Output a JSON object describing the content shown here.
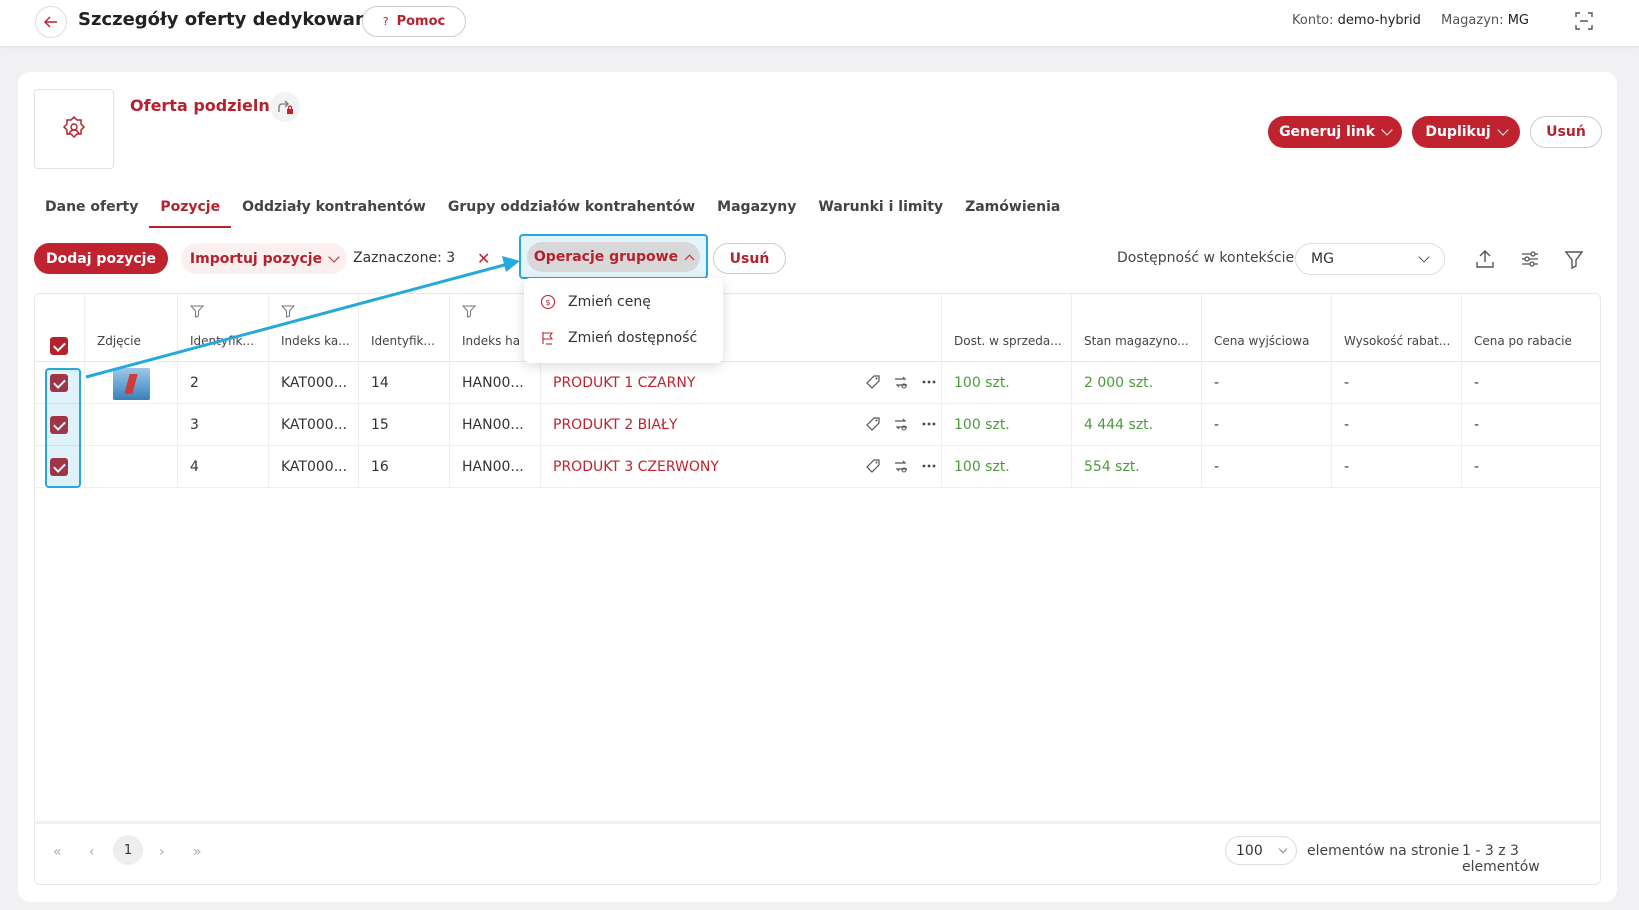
{
  "header": {
    "title": "Szczegóły oferty dedykowanej",
    "help_label": "Pomoc",
    "help_icon": "?",
    "account_label": "Konto:",
    "account_value": "demo-hybrid",
    "warehouse_label": "Magazyn:",
    "warehouse_value": "MG"
  },
  "offer": {
    "name": "Oferta podzielna",
    "actions": {
      "generate_link": "Generuj link",
      "duplicate": "Duplikuj",
      "delete": "Usuń"
    }
  },
  "tabs": [
    {
      "label": "Dane oferty",
      "active": false
    },
    {
      "label": "Pozycje",
      "active": true
    },
    {
      "label": "Oddziały kontrahentów",
      "active": false
    },
    {
      "label": "Grupy oddziałów kontrahentów",
      "active": false
    },
    {
      "label": "Magazyny",
      "active": false
    },
    {
      "label": "Warunki i limity",
      "active": false
    },
    {
      "label": "Zamówienia",
      "active": false
    }
  ],
  "toolbar": {
    "add_positions": "Dodaj pozycje",
    "import_positions": "Importuj pozycje",
    "selected_label": "Zaznaczone: 3",
    "clear_icon": "✕",
    "group_operations": "Operacje grupowe",
    "delete": "Usuń",
    "availability_label": "Dostępność w kontekście",
    "availability_value": "MG"
  },
  "group_menu": {
    "items": [
      {
        "label": "Zmień cenę",
        "icon": "dollar-circle-icon"
      },
      {
        "label": "Zmień dostępność",
        "icon": "availability-icon"
      }
    ]
  },
  "table": {
    "columns": [
      "Zdjęcie",
      "Identyfik...",
      "Indeks ka...",
      "Identyfik...",
      "Indeks ha",
      "",
      "Dost. w sprzeda...",
      "Stan magazyno...",
      "Cena wyjściowa",
      "Wysokość rabat...",
      "Cena po rabacie"
    ],
    "rows": [
      {
        "id": "2",
        "catalog_index": "KAT000...",
        "identifier": "14",
        "trade_index": "HAN00...",
        "name": "PRODUKT 1 CZARNY",
        "available": "100 szt.",
        "stock": "2 000 szt.",
        "base_price": "-",
        "discount": "-",
        "final_price": "-",
        "has_photo": true
      },
      {
        "id": "3",
        "catalog_index": "KAT000...",
        "identifier": "15",
        "trade_index": "HAN00...",
        "name": "PRODUKT 2 BIAŁY",
        "available": "100 szt.",
        "stock": "4 444 szt.",
        "base_price": "-",
        "discount": "-",
        "final_price": "-",
        "has_photo": false
      },
      {
        "id": "4",
        "catalog_index": "KAT000...",
        "identifier": "16",
        "trade_index": "HAN00...",
        "name": "PRODUKT 3 CZERWONY",
        "available": "100 szt.",
        "stock": "554 szt.",
        "base_price": "-",
        "discount": "-",
        "final_price": "-",
        "has_photo": false
      }
    ]
  },
  "pagination": {
    "first": "«",
    "prev": "‹",
    "current_page": "1",
    "next": "›",
    "last": "»",
    "per_page": "100",
    "per_page_label": "elementów na stronie",
    "range_label": "1 - 3 z 3 elementów"
  },
  "colors": {
    "brand_red": "#c0232f",
    "highlight_blue": "#25a8dc",
    "stock_green": "#4c9a3c"
  }
}
